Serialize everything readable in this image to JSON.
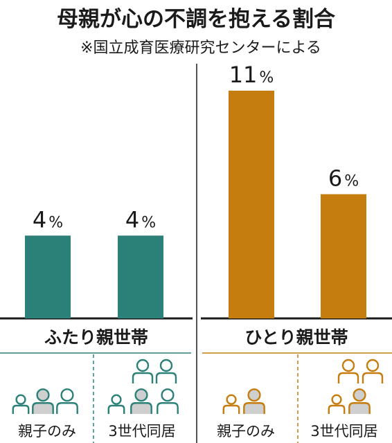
{
  "title": "母親が心の不調を抱える割合",
  "source": "※国立成育医療研究センターによる",
  "colors": {
    "two_parent": "#2b8078",
    "single_parent": "#c47d0e",
    "icon_fill": "#cfcfcf",
    "axis": "#1a1a1a"
  },
  "chart_data": [
    {
      "type": "bar",
      "group_label": "ふたり親世帯",
      "categories": [
        "親子のみ",
        "3世代同居"
      ],
      "values": [
        4,
        4
      ],
      "value_labels": [
        "4",
        "4"
      ],
      "unit": "%",
      "ylim": [
        0,
        11
      ],
      "grid": false
    },
    {
      "type": "bar",
      "group_label": "ひとり親世帯",
      "categories": [
        "親子のみ",
        "3世代同居"
      ],
      "values": [
        11,
        6
      ],
      "value_labels": [
        "11",
        "6"
      ],
      "unit": "%",
      "ylim": [
        0,
        11
      ],
      "grid": false
    }
  ],
  "icons": {
    "two_parent": [
      {
        "icon": "family-parents-child-icon",
        "people": 3,
        "elders": 0
      },
      {
        "icon": "family-parents-child-grandparents-icon",
        "people": 3,
        "elders": 2
      }
    ],
    "single_parent": [
      {
        "icon": "family-parent-child-icon",
        "people": 2,
        "elders": 0
      },
      {
        "icon": "family-parent-child-grandparents-icon",
        "people": 2,
        "elders": 2
      }
    ]
  }
}
